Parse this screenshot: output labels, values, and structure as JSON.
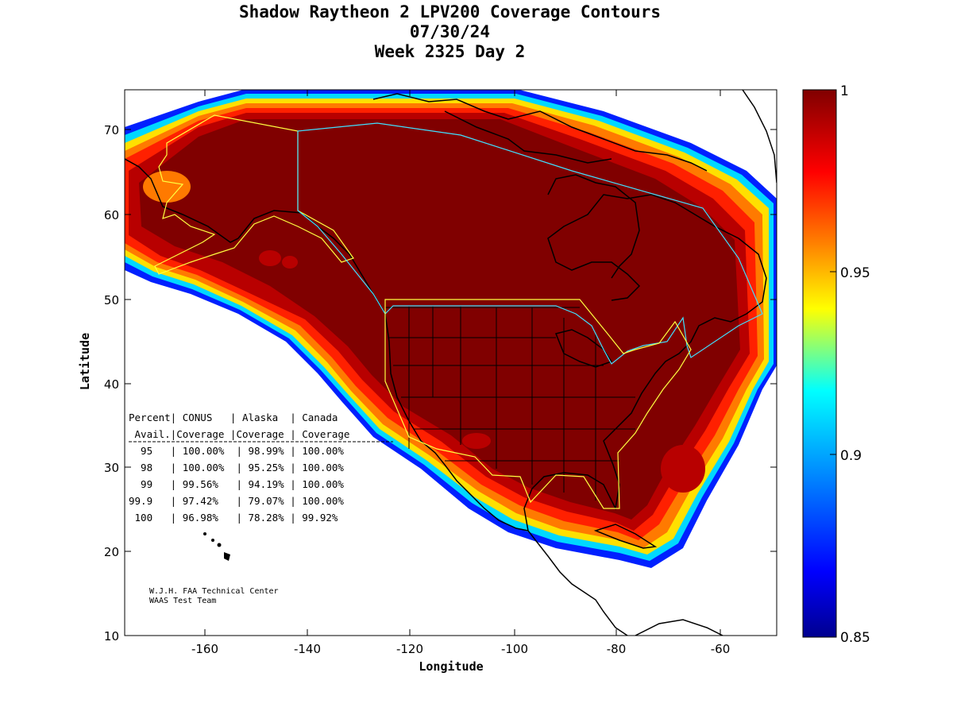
{
  "title": {
    "line1": "Shadow Raytheon 2 LPV200 Coverage Contours",
    "line2": "07/30/24",
    "line3": "Week 2325 Day 2"
  },
  "axes": {
    "xlabel": "Longitude",
    "ylabel": "Latitude",
    "x_ticks": [
      "-160",
      "-140",
      "-120",
      "-100",
      "-80",
      "-60"
    ],
    "y_ticks": [
      "70",
      "60",
      "50",
      "40",
      "30",
      "20",
      "10"
    ]
  },
  "colorbar": {
    "labels": [
      "1",
      "0.95",
      "0.9",
      "0.85"
    ],
    "stops": [
      "#00008f",
      "#0000ff",
      "#00ffff",
      "#ffff00",
      "#ff8000",
      "#ff0000",
      "#800000"
    ]
  },
  "table": {
    "header1": "Percent| CONUS   | Alaska  | Canada",
    "header2": " Avail.|Coverage |Coverage | Coverage",
    "rows": [
      "  95   | 100.00%  | 98.99% | 100.00%",
      "  98   | 100.00%  | 95.25% | 100.00%",
      "  99   | 99.56%   | 94.19% | 100.00%",
      "99.9   | 97.42%   | 79.07% | 100.00%",
      " 100   | 96.98%   | 78.28% | 99.92%"
    ]
  },
  "credit": {
    "line1": "W.J.H. FAA Technical Center",
    "line2": "WAAS Test Team"
  },
  "map_colors": {
    "full": "#800000",
    "high": "#b80000",
    "mid": "#ff2000",
    "edge_orange": "#ff7a00",
    "edge_yellow": "#ffe000",
    "edge_cyan": "#00d8ff",
    "edge_blue": "#0020ff",
    "coast": "#000000",
    "border_yellow": "#ffff40",
    "border_cyan": "#40e0ff"
  }
}
